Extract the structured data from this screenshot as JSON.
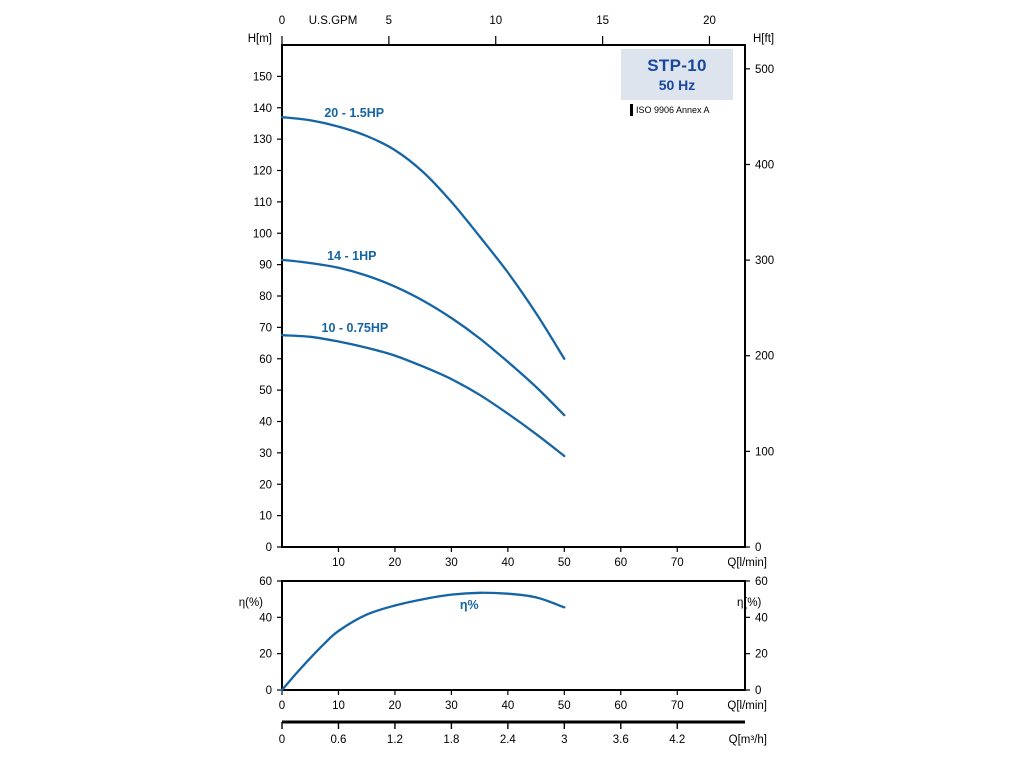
{
  "title_box": {
    "model": "STP-10",
    "frequency": "50 Hz",
    "standard": "ISO 9906 Annex A"
  },
  "colors": {
    "curve": "#1565a5",
    "curve_label": "#1565a5",
    "title_text": "#17479e",
    "title_bg": "#dde4ee",
    "axis": "#000000"
  },
  "chart_data": [
    {
      "type": "line",
      "title": "STP-10 50 Hz pump head curves",
      "xlabel": "Q[l/min]",
      "x2label": "U.S.GPM",
      "ylabel": "H[m]",
      "y2label": "H[ft]",
      "xlim": [
        0,
        82
      ],
      "ylim": [
        0,
        160
      ],
      "grid": false,
      "x_ticks_lmin": [
        10,
        20,
        30,
        40,
        50,
        60,
        70
      ],
      "x2_ticks_gpm": [
        0,
        5,
        10,
        15,
        20
      ],
      "y_ticks_m": [
        0,
        10,
        20,
        30,
        40,
        50,
        60,
        70,
        80,
        90,
        100,
        110,
        120,
        130,
        140,
        150
      ],
      "y2_ticks_ft": [
        0,
        100,
        200,
        300,
        400,
        500
      ],
      "series": [
        {
          "name": "20 - 1.5HP",
          "label_xy": [
            7.5,
            137
          ],
          "x": [
            0,
            5,
            10,
            15,
            20,
            25,
            30,
            35,
            40,
            45,
            50
          ],
          "y": [
            137,
            136,
            134,
            131,
            126.5,
            119.5,
            110,
            99,
            87.5,
            74.5,
            60
          ]
        },
        {
          "name": "14 - 1HP",
          "label_xy": [
            8,
            91.5
          ],
          "x": [
            0,
            5,
            10,
            15,
            20,
            25,
            30,
            35,
            40,
            45,
            50
          ],
          "y": [
            91.5,
            90.5,
            89,
            86.5,
            83,
            78.5,
            73,
            66.5,
            59,
            51,
            42
          ]
        },
        {
          "name": "10 - 0.75HP",
          "label_xy": [
            7,
            68.5
          ],
          "x": [
            0,
            5,
            10,
            15,
            20,
            25,
            30,
            35,
            40,
            45,
            50
          ],
          "y": [
            67.5,
            67,
            65.5,
            63.5,
            61,
            57.5,
            53.5,
            48.5,
            42.5,
            36,
            29
          ]
        }
      ]
    },
    {
      "type": "line",
      "title": "Efficiency curve",
      "xlabel": "Q[l/min]",
      "ylabel": "η(%)",
      "y2label": "η(%)",
      "xlim": [
        0,
        82
      ],
      "ylim": [
        0,
        60
      ],
      "grid": false,
      "x_ticks_lmin": [
        0,
        10,
        20,
        30,
        40,
        50,
        60,
        70
      ],
      "y_ticks": [
        0,
        20,
        40,
        60
      ],
      "series": [
        {
          "name": "η%",
          "label_xy": [
            31.5,
            44.5
          ],
          "x": [
            0,
            2.5,
            5,
            7.5,
            10,
            15,
            20,
            25,
            30,
            35,
            40,
            45,
            50
          ],
          "y": [
            0,
            9,
            17.5,
            25.5,
            32.5,
            41.5,
            46.5,
            50,
            52.5,
            53.5,
            53,
            51,
            45.5
          ]
        }
      ]
    }
  ],
  "extra_axis": {
    "label": "Q[m³/h]",
    "tick_labels": [
      "0",
      "0.6",
      "1.2",
      "1.8",
      "2.4",
      "3",
      "3.6",
      "4.2"
    ]
  }
}
